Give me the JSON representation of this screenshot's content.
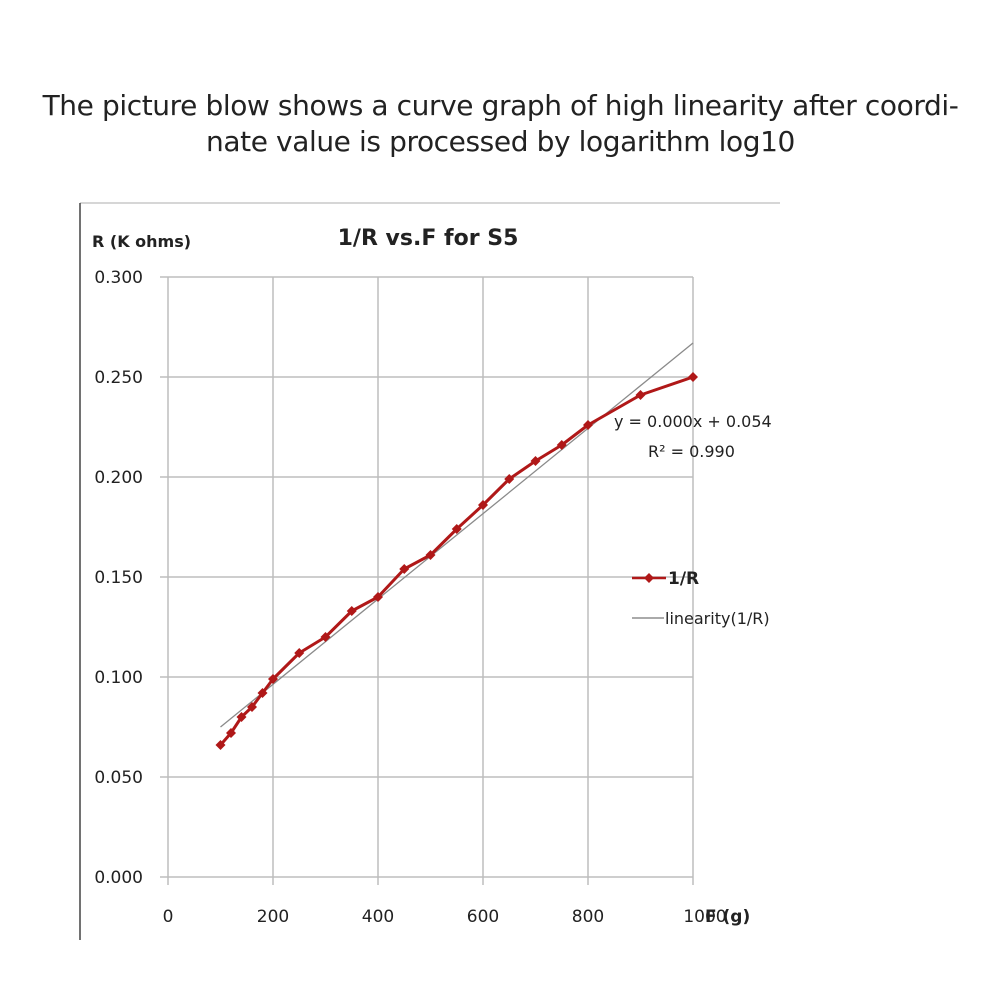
{
  "caption": {
    "line1": "The picture blow shows a curve graph of high linearity after coordi-",
    "line2": "nate value is processed by logarithm log10"
  },
  "chart_data": {
    "type": "line",
    "title": "1/R vs.F for S5",
    "ylabel": "R (K ohms)",
    "xlabel": "F (g)",
    "xlim": [
      0,
      1000
    ],
    "ylim": [
      0,
      0.3
    ],
    "xticks": [
      "0",
      "200",
      "400",
      "600",
      "800",
      "1000"
    ],
    "yticks": [
      "0.000",
      "0.050",
      "0.100",
      "0.150",
      "0.200",
      "0.250",
      "0.300"
    ],
    "grid": true,
    "legend_position": "right",
    "series": [
      {
        "name": "1/R",
        "color": "#b01818",
        "marker": "diamond",
        "x": [
          100,
          120,
          140,
          160,
          180,
          200,
          250,
          300,
          350,
          400,
          450,
          500,
          550,
          600,
          650,
          700,
          750,
          800,
          900,
          1000
        ],
        "y": [
          0.066,
          0.072,
          0.08,
          0.085,
          0.092,
          0.099,
          0.112,
          0.12,
          0.133,
          0.14,
          0.154,
          0.161,
          0.174,
          0.186,
          0.199,
          0.208,
          0.216,
          0.226,
          0.241,
          0.25
        ]
      },
      {
        "name": "linearity(1/R)",
        "color": "#8a8a8a",
        "marker": "none",
        "x": [
          100,
          1000
        ],
        "y": [
          0.075,
          0.267
        ]
      }
    ],
    "annotations": [
      "y = 0.000x + 0.054",
      "R² = 0.990"
    ]
  }
}
